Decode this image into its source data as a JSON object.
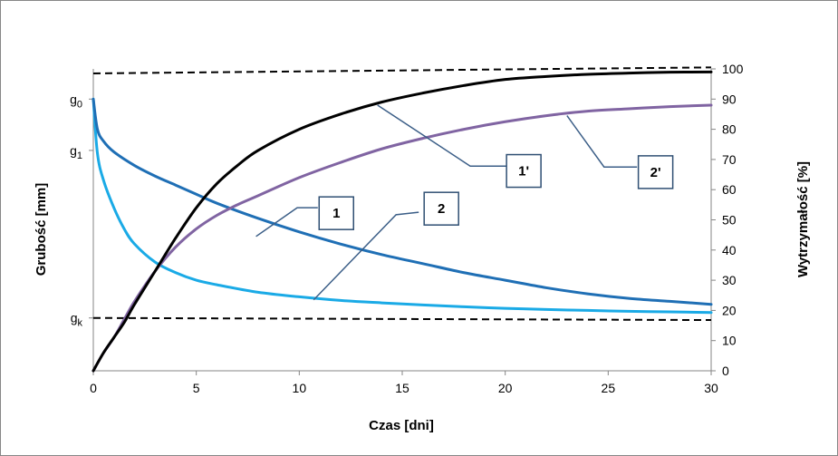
{
  "chart_data": {
    "type": "line",
    "xlabel": "Czas [dni]",
    "ylabel_left": "Grubość [mm]",
    "ylabel_right": "Wytrzymałość  [%]",
    "x_ticks": [
      "0",
      "5",
      "10",
      "15",
      "20",
      "25",
      "30"
    ],
    "x_range": [
      0,
      30
    ],
    "y_right_ticks": [
      "0",
      "10",
      "20",
      "30",
      "40",
      "50",
      "60",
      "70",
      "80",
      "90",
      "100"
    ],
    "y_right_range": [
      0,
      100
    ],
    "y_left_labels": [
      {
        "base": "g",
        "sub": "0",
        "value": 90
      },
      {
        "base": "g",
        "sub": "1",
        "value": 73
      },
      {
        "base": "g",
        "sub": "k",
        "value": 17.5
      }
    ],
    "grid": false,
    "legend": "none",
    "colors": {
      "black": "#000000",
      "purple": "#8064a2",
      "blue_dark": "#1f6fb5",
      "blue_light": "#1aaae6",
      "leader": "#3b5e87",
      "box_border": "#2f4f73"
    },
    "series": [
      {
        "name": "1'",
        "color": "#000000",
        "x": [
          0,
          0.5,
          1,
          1.5,
          2,
          3,
          4,
          5,
          6,
          7,
          8,
          10,
          12,
          14,
          16,
          18,
          20,
          22,
          24,
          26,
          28,
          30
        ],
        "y": [
          0,
          6,
          11,
          16,
          22,
          33,
          44,
          54,
          62,
          68,
          73,
          80,
          85,
          89,
          92,
          94.5,
          96.5,
          97.5,
          98.2,
          98.6,
          98.9,
          99
        ]
      },
      {
        "name": "2'",
        "color": "#8064a2",
        "x": [
          0,
          0.5,
          1,
          1.5,
          2,
          3,
          4,
          5,
          6,
          7,
          8,
          10,
          12,
          14,
          16,
          18,
          20,
          22,
          24,
          26,
          28,
          30
        ],
        "y": [
          0,
          6,
          11,
          17,
          23,
          33,
          41,
          47,
          51.5,
          55,
          58,
          64,
          69,
          73.5,
          77,
          80,
          82.5,
          84.5,
          86,
          86.8,
          87.5,
          88
        ]
      },
      {
        "name": "1",
        "color": "#1f6fb5",
        "x": [
          0,
          0.2,
          0.5,
          1,
          2,
          3,
          4,
          5,
          6,
          8,
          10,
          12,
          14,
          16,
          18,
          20,
          22,
          24,
          26,
          28,
          30
        ],
        "y": [
          90,
          80,
          76,
          72.5,
          68,
          64.5,
          61.5,
          58.5,
          55.5,
          50.5,
          46,
          42,
          38.5,
          35.5,
          32.5,
          30,
          27.5,
          25.5,
          24,
          23,
          22
        ]
      },
      {
        "name": "2",
        "color": "#1aaae6",
        "x": [
          0,
          0.2,
          0.5,
          1,
          1.5,
          2,
          3,
          4,
          5,
          6,
          8,
          10,
          12,
          14,
          16,
          18,
          20,
          22,
          24,
          26,
          28,
          30
        ],
        "y": [
          90,
          72,
          63,
          54,
          47,
          42,
          36,
          32.5,
          30,
          28.5,
          26,
          24.5,
          23.3,
          22.5,
          21.8,
          21.2,
          20.7,
          20.3,
          20,
          19.7,
          19.5,
          19.3
        ]
      }
    ],
    "reference_lines": [
      {
        "from": [
          0,
          98.5
        ],
        "to": [
          30,
          100.5
        ],
        "style": "dashed"
      },
      {
        "from": [
          0,
          17.5
        ],
        "to": [
          30,
          16.8
        ],
        "style": "dashed"
      }
    ],
    "callouts": [
      {
        "label": "1'",
        "series": "1'",
        "anchor": [
          13.8,
          88
        ],
        "box": [
          20.9,
          66.2
        ],
        "path": [
          [
            13.8,
            88
          ],
          [
            18.3,
            67.8
          ],
          [
            20.2,
            67.8
          ]
        ]
      },
      {
        "label": "2'",
        "series": "2'",
        "anchor": [
          23.0,
          84.5
        ],
        "box": [
          27.3,
          65.8
        ],
        "path": [
          [
            23.0,
            84.5
          ],
          [
            24.8,
            67.5
          ],
          [
            26.4,
            67.5
          ]
        ]
      },
      {
        "label": "1",
        "series": "1",
        "anchor": [
          7.9,
          44.5
        ],
        "box": [
          11.8,
          52.2
        ],
        "path": [
          [
            7.9,
            44.5
          ],
          [
            9.9,
            54.0
          ],
          [
            10.9,
            54.0
          ]
        ]
      },
      {
        "label": "2",
        "series": "2",
        "anchor": [
          10.7,
          23.5
        ],
        "box": [
          16.9,
          53.7
        ],
        "path": [
          [
            10.7,
            23.5
          ],
          [
            14.7,
            51.7
          ],
          [
            15.8,
            52.5
          ]
        ]
      }
    ]
  }
}
